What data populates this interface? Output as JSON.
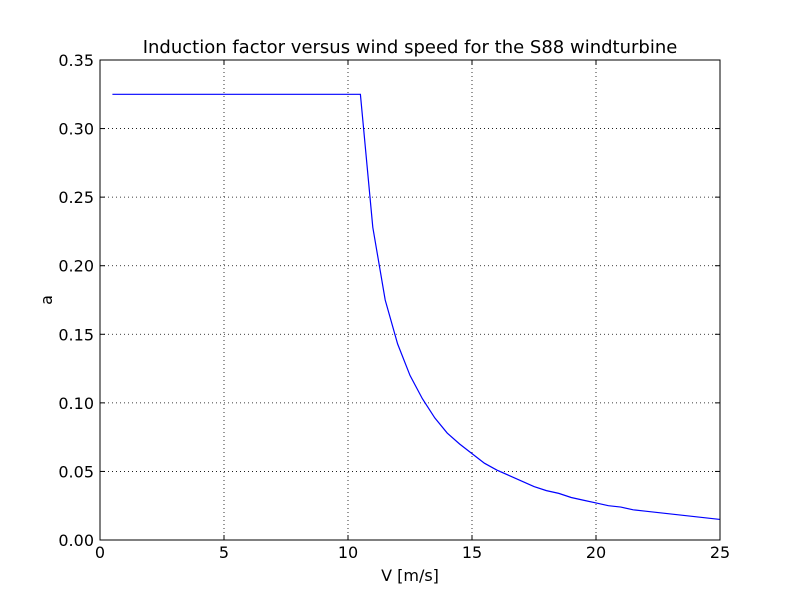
{
  "chart_data": {
    "type": "line",
    "title": "Induction factor versus wind speed for the S88 windturbine",
    "xlabel": "V [m/s]",
    "ylabel": "a",
    "xlim": [
      0,
      25
    ],
    "ylim": [
      0,
      0.35
    ],
    "grid": true,
    "grid_style": "dotted",
    "x_ticks": [
      0,
      5,
      10,
      15,
      20,
      25
    ],
    "x_tick_labels": [
      "0",
      "5",
      "10",
      "15",
      "20",
      "25"
    ],
    "y_ticks": [
      0,
      0.05,
      0.1,
      0.15,
      0.2,
      0.25,
      0.3,
      0.35
    ],
    "y_tick_labels": [
      "0.00",
      "0.05",
      "0.10",
      "0.15",
      "0.20",
      "0.25",
      "0.30",
      "0.35"
    ],
    "series": [
      {
        "color": "#0000ff",
        "x": [
          0.5,
          1,
          2,
          3,
          4,
          5,
          6,
          7,
          8,
          9,
          10,
          10.5,
          11,
          11.5,
          12,
          12.5,
          13,
          13.5,
          14,
          14.5,
          15,
          15.5,
          16,
          16.5,
          17,
          17.5,
          18,
          18.5,
          19,
          19.5,
          20,
          20.5,
          21,
          21.5,
          22,
          22.5,
          23,
          23.5,
          24,
          24.5,
          25
        ],
        "y": [
          0.325,
          0.325,
          0.325,
          0.325,
          0.325,
          0.325,
          0.325,
          0.325,
          0.325,
          0.325,
          0.325,
          0.325,
          0.228,
          0.175,
          0.143,
          0.12,
          0.103,
          0.089,
          0.078,
          0.07,
          0.063,
          0.056,
          0.051,
          0.047,
          0.043,
          0.039,
          0.036,
          0.034,
          0.031,
          0.029,
          0.027,
          0.025,
          0.024,
          0.022,
          0.021,
          0.02,
          0.019,
          0.018,
          0.017,
          0.016,
          0.015
        ]
      }
    ]
  }
}
